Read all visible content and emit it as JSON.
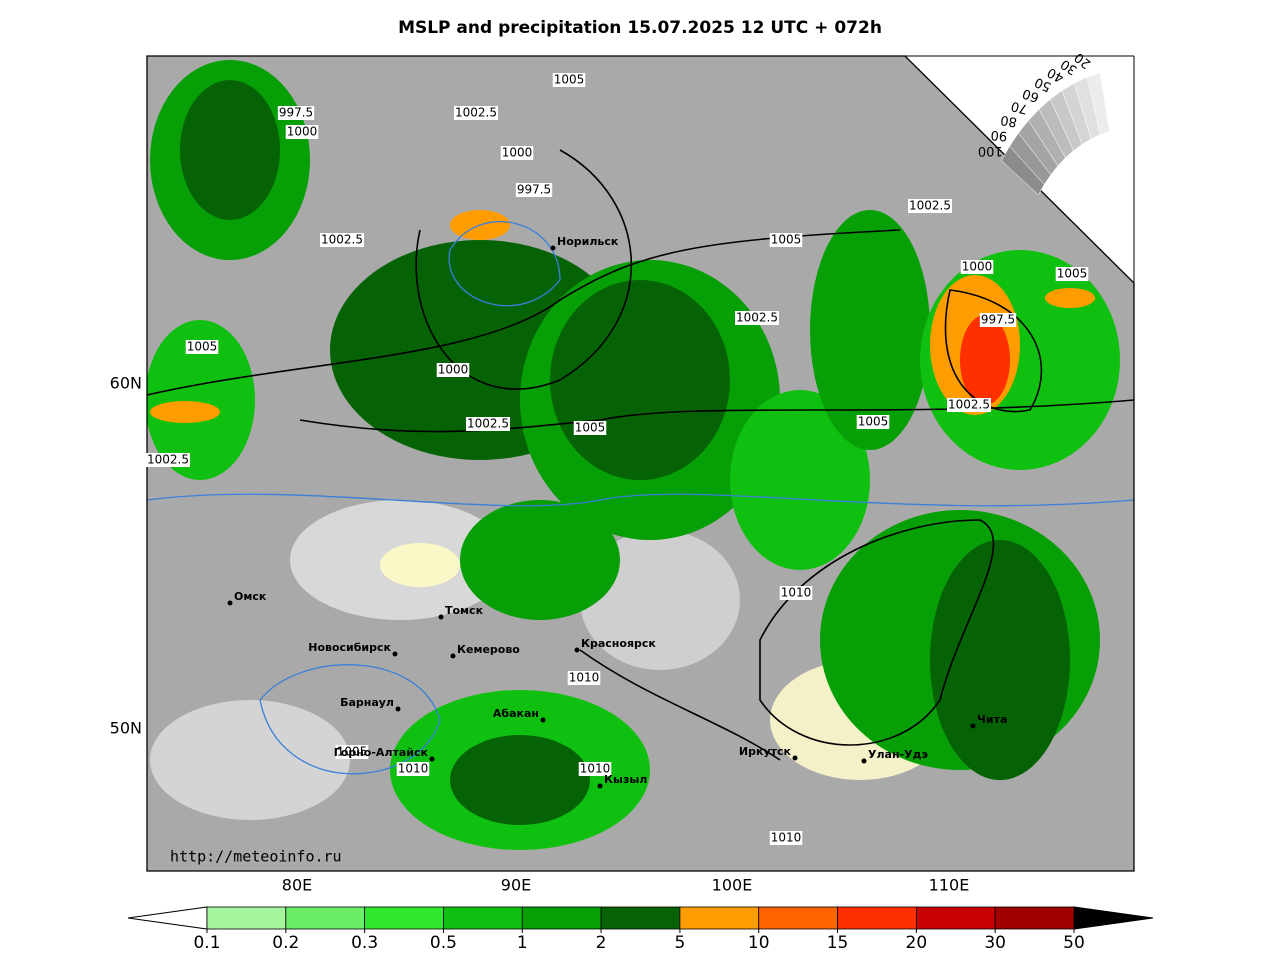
{
  "title": "MSLP and precipitation 15.07.2025 12 UTC + 072h",
  "isobar_labels": [
    "997.5",
    "1000",
    "1002.5",
    "1005",
    "1000",
    "997.5",
    "1002.5",
    "1005",
    "1000",
    "1002.5",
    "1005",
    "1002.5",
    "1005",
    "1002.5",
    "1000",
    "1005",
    "997.5",
    "1002.5",
    "1005",
    "1002.5",
    "1010",
    "1010",
    "1005",
    "1010",
    "1010",
    "1010"
  ],
  "cities": [
    "Норильск",
    "Омск",
    "Томск",
    "Новосибирск",
    "Кемерово",
    "Красноярск",
    "Барнаул",
    "Абакан",
    "Горно-Алтайск",
    "Кызыл",
    "Иркутск",
    "Улан-Удэ",
    "Чита"
  ],
  "lat_labels": [
    "60N",
    "50N"
  ],
  "lon_labels": [
    "80E",
    "90E",
    "100E",
    "110E"
  ],
  "cloud_legend": [
    "100",
    "90",
    "80",
    "70",
    "60",
    "50",
    "40",
    "30",
    "20"
  ],
  "source": "http://meteoinfo.ru",
  "legend": {
    "bounds": [
      0.1,
      0.2,
      0.3,
      0.5,
      1,
      2,
      5,
      10,
      15,
      20,
      30,
      50
    ],
    "colors": [
      "#a8f5a0",
      "#6ced6a",
      "#30e830",
      "#10c010",
      "#069f06",
      "#056305",
      "#ff9c00",
      "#ff6400",
      "#ff3000",
      "#c80000",
      "#a00000"
    ]
  }
}
